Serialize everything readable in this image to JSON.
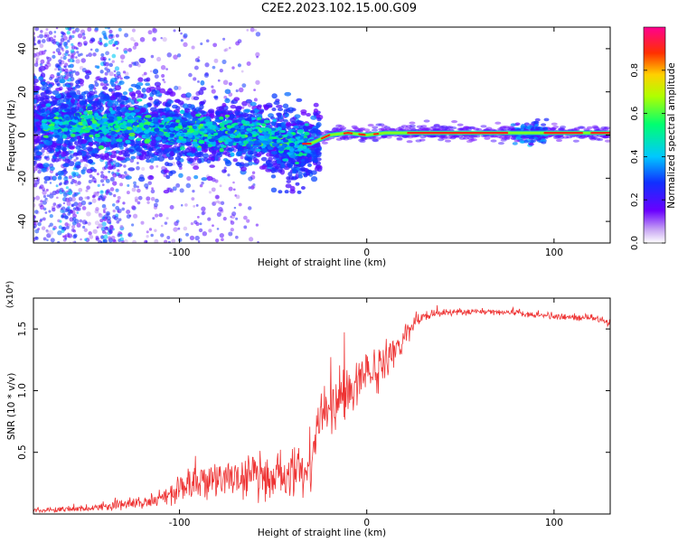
{
  "figure": {
    "title": "C2E2.2023.102.15.00.G09"
  },
  "chart_data": [
    {
      "type": "heatmap",
      "xlabel": "Height of straight line (km)",
      "ylabel": "Frequency (Hz)",
      "xlim": [
        -178,
        130
      ],
      "ylim": [
        -50,
        50
      ],
      "x_ticks": [
        -100,
        0,
        100
      ],
      "y_ticks": [
        -40,
        -20,
        0,
        20,
        40
      ],
      "colorbar": {
        "label": "Normalized spectral amplitude",
        "range": [
          0,
          1
        ],
        "ticks": [
          0.0,
          0.2,
          0.4,
          0.6,
          0.8
        ]
      },
      "ridge": {
        "description_points_x": [
          -178,
          -150,
          -120,
          -100,
          -80,
          -60,
          -45,
          -35,
          -30,
          -20,
          -10,
          0,
          10,
          30,
          60,
          90,
          130
        ],
        "center_freq": [
          6,
          5,
          4,
          2,
          1,
          0,
          -3,
          -4,
          -4,
          0,
          1,
          0,
          1,
          1,
          1,
          1,
          1
        ]
      }
    },
    {
      "type": "line",
      "xlabel": "Height of straight line (km)",
      "ylabel": "SNR (10 * v/v)",
      "scale_label": "(x10⁴)",
      "xlim": [
        -178,
        130
      ],
      "ylim": [
        0,
        17500
      ],
      "x_ticks": [
        -100,
        0,
        100
      ],
      "y_ticks": [
        5000,
        10000,
        15000
      ],
      "y_tick_labels": [
        "0.5",
        "1.0",
        "1.5"
      ],
      "series": [
        {
          "color": "#ee3333",
          "x": [
            -178,
            -160,
            -140,
            -120,
            -105,
            -95,
            -80,
            -60,
            -40,
            -30,
            -27,
            -22,
            -15,
            -8,
            0,
            10,
            20,
            25,
            30,
            40,
            60,
            80,
            100,
            120,
            130
          ],
          "mean": [
            300,
            350,
            600,
            900,
            1500,
            2400,
            2800,
            3000,
            3200,
            3300,
            6500,
            8500,
            9500,
            10500,
            11500,
            12500,
            14500,
            15500,
            16000,
            16300,
            16400,
            16300,
            16000,
            15900,
            15500
          ],
          "spread": [
            200,
            250,
            350,
            500,
            900,
            1400,
            1600,
            1800,
            2000,
            2000,
            2000,
            2200,
            2500,
            2500,
            2200,
            2000,
            1200,
            700,
            400,
            300,
            250,
            250,
            300,
            300,
            300
          ]
        }
      ]
    }
  ]
}
